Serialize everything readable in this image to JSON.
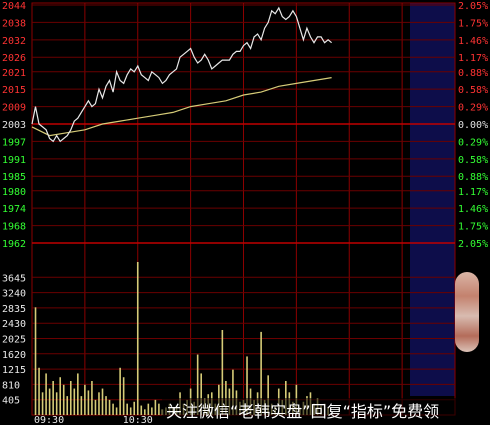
{
  "chart_data": {
    "type": "line",
    "price_axis": {
      "left_labels": [
        "2044",
        "2038",
        "2032",
        "2026",
        "2021",
        "2015",
        "2009",
        "2003",
        "1997",
        "1991",
        "1985",
        "1980",
        "1974",
        "1968",
        "1962"
      ],
      "right_labels": [
        "2.05%",
        "1.75%",
        "1.46%",
        "1.17%",
        "0.88%",
        "0.58%",
        "0.29%",
        "0.00%",
        "0.29%",
        "0.58%",
        "0.88%",
        "1.17%",
        "1.46%",
        "1.75%",
        "2.05%"
      ],
      "reference_price": 2003,
      "ylim": [
        1962,
        2044
      ]
    },
    "volume_axis": {
      "labels": [
        "3645",
        "3240",
        "2835",
        "2430",
        "2025",
        "1620",
        "1215",
        "810",
        "405"
      ],
      "ylim": [
        0,
        4050
      ]
    },
    "time_labels": [
      "09:30",
      "10:30"
    ],
    "minutes_total": 240,
    "minutes_shown": 170,
    "series": [
      {
        "kind": "price",
        "color": "#e8e8e8",
        "x": [
          0,
          2,
          4,
          6,
          8,
          10,
          12,
          14,
          16,
          18,
          20,
          22,
          24,
          26,
          28,
          30,
          32,
          34,
          36,
          38,
          40,
          42,
          44,
          46,
          48,
          50,
          52,
          54,
          56,
          58,
          60,
          62,
          64,
          66,
          68,
          70,
          72,
          74,
          76,
          78,
          80,
          82,
          84,
          86,
          88,
          90,
          92,
          94,
          96,
          98,
          100,
          102,
          104,
          106,
          108,
          110,
          112,
          114,
          116,
          118,
          120,
          122,
          124,
          126,
          128,
          130,
          132,
          134,
          136,
          138,
          140,
          142,
          144,
          146,
          148,
          150,
          152,
          154,
          156,
          158,
          160,
          162,
          164,
          166,
          168,
          170
        ],
        "values": [
          2003,
          2009,
          2003,
          2002,
          2001,
          1998,
          1997,
          1999,
          1997,
          1998,
          1999,
          2001,
          2004,
          2005,
          2007,
          2009,
          2011,
          2009,
          2010,
          2015,
          2012,
          2016,
          2018,
          2014,
          2021,
          2018,
          2017,
          2020,
          2022,
          2021,
          2023,
          2020,
          2019,
          2018,
          2021,
          2020,
          2019,
          2017,
          2018,
          2020,
          2021,
          2022,
          2026,
          2027,
          2028,
          2029,
          2026,
          2024,
          2025,
          2027,
          2025,
          2022,
          2023,
          2024,
          2025,
          2025,
          2025,
          2027,
          2028,
          2028,
          2030,
          2031,
          2029,
          2033,
          2034,
          2032,
          2036,
          2038,
          2042,
          2041,
          2043,
          2040,
          2039,
          2040,
          2042,
          2040,
          2036,
          2032,
          2036,
          2033,
          2031,
          2033,
          2033,
          2031,
          2032,
          2031
        ]
      },
      {
        "kind": "average",
        "color": "#d6cc78",
        "x": [
          0,
          10,
          20,
          30,
          40,
          50,
          60,
          70,
          80,
          90,
          100,
          110,
          120,
          130,
          140,
          150,
          160,
          170
        ],
        "values": [
          2002,
          1999,
          2000,
          2001,
          2003,
          2004,
          2005,
          2006,
          2007,
          2009,
          2010,
          2011,
          2013,
          2014,
          2016,
          2017,
          2018,
          2019
        ]
      }
    ],
    "volume": {
      "color": "#d6cc78",
      "x": [
        2,
        4,
        6,
        8,
        10,
        12,
        14,
        16,
        18,
        20,
        22,
        24,
        26,
        28,
        30,
        32,
        34,
        36,
        38,
        40,
        42,
        44,
        46,
        48,
        50,
        52,
        54,
        56,
        58,
        60,
        62,
        64,
        66,
        68,
        70,
        72,
        74,
        76,
        78,
        80,
        82,
        84,
        86,
        88,
        90,
        92,
        94,
        96,
        98,
        100,
        102,
        104,
        106,
        108,
        110,
        112,
        114,
        116,
        118,
        120,
        122,
        124,
        126,
        128,
        130,
        132,
        134,
        136,
        138,
        140,
        142,
        144,
        146,
        148,
        150,
        152,
        154,
        156,
        158,
        160,
        162,
        164,
        166,
        168
      ],
      "values": [
        2850,
        1250,
        600,
        1100,
        700,
        900,
        600,
        1000,
        800,
        500,
        900,
        700,
        1100,
        500,
        800,
        650,
        900,
        400,
        600,
        700,
        500,
        400,
        300,
        200,
        1250,
        1000,
        300,
        200,
        350,
        4050,
        250,
        150,
        300,
        200,
        400,
        300,
        150,
        200,
        300,
        200,
        250,
        600,
        300,
        400,
        700,
        350,
        1600,
        1100,
        450,
        550,
        600,
        300,
        800,
        2250,
        900,
        700,
        1200,
        650,
        350,
        400,
        1550,
        700,
        400,
        600,
        2200,
        400,
        1050,
        300,
        250,
        700,
        400,
        900,
        600,
        350,
        800,
        200,
        350,
        500,
        600,
        300,
        450,
        250,
        300,
        200
      ]
    }
  },
  "caption": {
    "text": "关注微信“老韩实盘”回复“指标”免费领"
  }
}
